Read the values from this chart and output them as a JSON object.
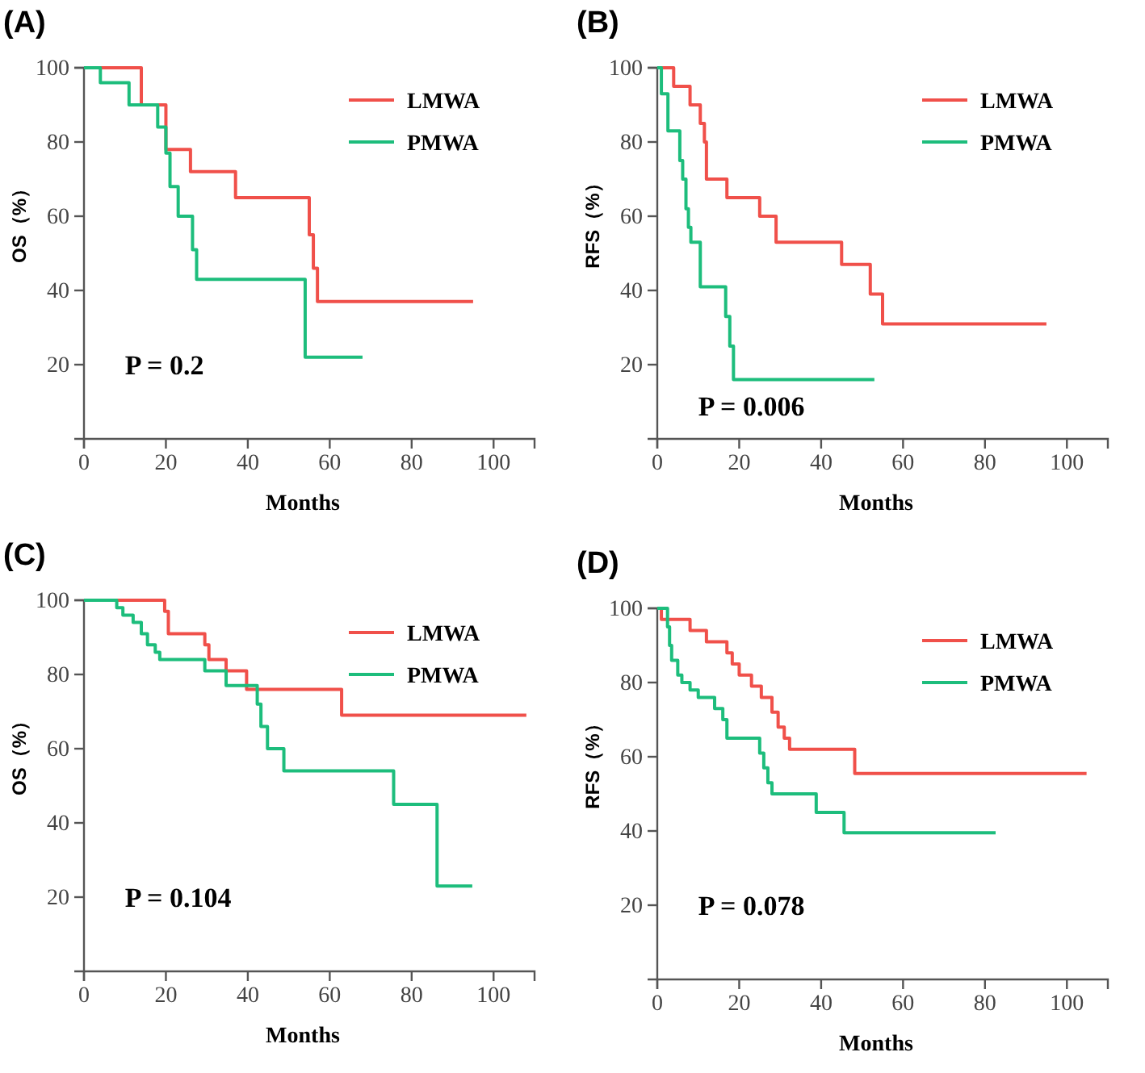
{
  "chart_data": [
    {
      "type": "step",
      "title": "(A)",
      "xlabel": "Months",
      "ylabel": "OS（%）",
      "xlim": [
        0,
        110
      ],
      "ylim": [
        0,
        100
      ],
      "xticks": [
        0,
        20,
        40,
        60,
        80,
        100
      ],
      "yticks": [
        20,
        40,
        60,
        80,
        100
      ],
      "legend": "top right",
      "grid": false,
      "annotations": [
        "P = 0.2"
      ],
      "series": [
        {
          "name": "LMWA",
          "color": "#f0504a",
          "x": [
            0,
            14,
            20,
            26,
            37,
            55,
            56,
            57,
            95
          ],
          "values": [
            100,
            90,
            78,
            72,
            65,
            55,
            46,
            37,
            37
          ]
        },
        {
          "name": "PMWA",
          "color": "#1dbd7c",
          "x": [
            0,
            4,
            11,
            18,
            20,
            21,
            23,
            26.5,
            27.5,
            54,
            68
          ],
          "values": [
            100,
            96,
            90,
            84,
            77,
            68,
            60,
            51,
            43,
            22,
            22
          ]
        }
      ]
    },
    {
      "type": "step",
      "title": "(B)",
      "xlabel": "Months",
      "ylabel": "RFS（%）",
      "xlim": [
        0,
        110
      ],
      "ylim": [
        0,
        100
      ],
      "xticks": [
        0,
        20,
        40,
        60,
        80,
        100
      ],
      "yticks": [
        20,
        40,
        60,
        80,
        100
      ],
      "legend": "top right",
      "grid": false,
      "annotations": [
        "P = 0.006"
      ],
      "series": [
        {
          "name": "LMWA",
          "color": "#f0504a",
          "x": [
            0,
            4,
            8,
            10.5,
            11.5,
            12,
            17,
            25,
            29,
            45,
            52,
            55,
            95
          ],
          "values": [
            100,
            95,
            90,
            85,
            80,
            70,
            65,
            60,
            53,
            47,
            39,
            31,
            31
          ]
        },
        {
          "name": "PMWA",
          "color": "#1dbd7c",
          "x": [
            0,
            1,
            2.6,
            5.5,
            6.2,
            7,
            7.6,
            8.2,
            10.5,
            16.7,
            17.7,
            18.6,
            53
          ],
          "values": [
            100,
            93,
            83,
            75,
            70,
            62,
            57,
            53,
            41,
            33,
            25,
            16,
            16
          ]
        }
      ]
    },
    {
      "type": "step",
      "title": "(C)",
      "xlabel": "Months",
      "ylabel": "OS（%）",
      "xlim": [
        0,
        110
      ],
      "ylim": [
        0,
        100
      ],
      "xticks": [
        0,
        20,
        40,
        60,
        80,
        100
      ],
      "yticks": [
        20,
        40,
        60,
        80,
        100
      ],
      "legend": "top right",
      "grid": false,
      "annotations": [
        "P = 0.104"
      ],
      "series": [
        {
          "name": "LMWA",
          "color": "#f0504a",
          "x": [
            0,
            19.7,
            20.6,
            29.5,
            30.5,
            34.7,
            39.7,
            62.9,
            108
          ],
          "values": [
            100,
            97,
            91,
            88,
            84,
            81,
            76,
            69,
            69
          ]
        },
        {
          "name": "PMWA",
          "color": "#1dbd7c",
          "x": [
            0,
            8,
            9.5,
            12,
            14,
            15.5,
            17.4,
            18.5,
            29.5,
            34.7,
            42.3,
            43.2,
            44.8,
            48.8,
            75.6,
            86.2,
            94.8
          ],
          "values": [
            100,
            98,
            96,
            94,
            91,
            88,
            86,
            84,
            81,
            77,
            72,
            66,
            60,
            54,
            45,
            23,
            23
          ]
        }
      ]
    },
    {
      "type": "step",
      "title": "(D)",
      "xlabel": "Months",
      "ylabel": "RFS（%）",
      "xlim": [
        0,
        110
      ],
      "ylim": [
        0,
        100
      ],
      "xticks": [
        0,
        20,
        40,
        60,
        80,
        100
      ],
      "yticks": [
        20,
        40,
        60,
        80,
        100
      ],
      "legend": "top right",
      "grid": false,
      "annotations": [
        "P = 0.078"
      ],
      "series": [
        {
          "name": "LMWA",
          "color": "#f0504a",
          "x": [
            0,
            1,
            8,
            12,
            17,
            18.3,
            20,
            23,
            25.4,
            28,
            29.5,
            31,
            32.3,
            48.2,
            104.8
          ],
          "values": [
            100,
            97,
            94,
            91,
            88,
            85,
            82,
            79,
            76,
            72,
            68,
            65,
            62,
            55.5,
            55.5
          ]
        },
        {
          "name": "PMWA",
          "color": "#1dbd7c",
          "x": [
            0,
            2.5,
            3,
            3.5,
            5,
            6,
            8,
            10,
            14,
            16,
            17,
            25,
            26,
            27,
            28,
            38.8,
            45.6,
            82.6
          ],
          "values": [
            100,
            95,
            90,
            86,
            82,
            80,
            78,
            76,
            73,
            70,
            65,
            61,
            57,
            53,
            50,
            45,
            39.5,
            39.5
          ]
        }
      ]
    }
  ]
}
